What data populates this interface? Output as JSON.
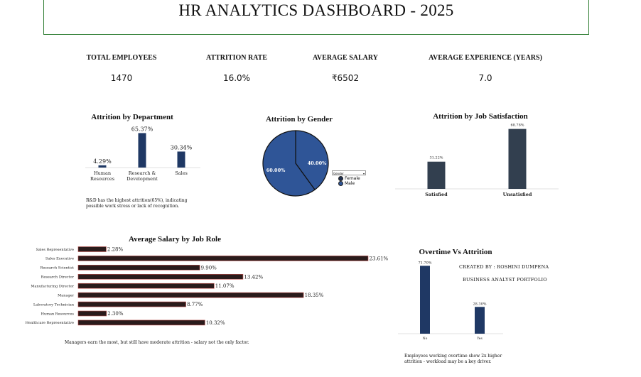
{
  "header": {
    "title": "HR ANALYTICS DASHBOARD - 2025"
  },
  "kpis": [
    {
      "label": "TOTAL EMPLOYEES",
      "value": "1470"
    },
    {
      "label": "ATTRITION RATE",
      "value": "16.0%"
    },
    {
      "label": "AVERAGE SALARY",
      "value": "₹6502"
    },
    {
      "label": "AVERAGE EXPERIENCE (YEARS)",
      "value": "7.0"
    }
  ],
  "notes": {
    "department": "R&D has the highest attrition(65%), indicating possible work stress or lack of recognition.",
    "salary": "Managers earn the most, but still have moderate attrition - salary not the only factor.",
    "overtime": "Employees working overtime show 2x higher attrition - workload may be a key driver."
  },
  "credits": {
    "line1": "CREATED BY : ROSHINI DUMPENA",
    "line2": "BUSINESS ANALYST PORTFOLIO"
  },
  "gender_filter": {
    "selected": "Gender",
    "chevron": "▾"
  },
  "colors": {
    "navy": "#1f3864",
    "pie_male": "#2f5597",
    "pie_female": "#2f5597",
    "job_bar": "#323f4f",
    "salary_bar": "#2a1b1b",
    "salary_outline": "#c0504d",
    "header_border": "#2e7d32"
  },
  "chart_data": [
    {
      "id": "department",
      "type": "bar",
      "title": "Attrition by Department",
      "categories": [
        [
          "Human",
          "Resources"
        ],
        [
          "Research &",
          "Development"
        ],
        [
          "Sales"
        ]
      ],
      "values": [
        4.29,
        65.37,
        30.34
      ],
      "labels": [
        "4.29%",
        "65.37%",
        "30.34%"
      ],
      "ylim": [
        0,
        70
      ]
    },
    {
      "id": "gender",
      "type": "pie",
      "title": "Attrition by Gender",
      "categories": [
        "Female",
        "Male"
      ],
      "values": [
        40.0,
        60.0
      ],
      "labels": [
        "40.00%",
        "60.00%"
      ],
      "legend": "right"
    },
    {
      "id": "job_satisfaction",
      "type": "bar",
      "title": "Attrition by Job Satisfaction",
      "categories": [
        "Satisfied",
        "Unsatisfied"
      ],
      "values": [
        31.22,
        68.78
      ],
      "labels": [
        "31.22%",
        "68.78%"
      ],
      "ylim": [
        0,
        75
      ]
    },
    {
      "id": "salary_by_role",
      "type": "bar",
      "orientation": "horizontal",
      "title": "Average Salary by Job Role",
      "categories": [
        "Sales Representative",
        "Sales Executive",
        "Research Scientist",
        "Research Director",
        "Manufacturing Director",
        "Manager",
        "Laboratory Technician",
        "Human Resources",
        "Healthcare Representative"
      ],
      "values": [
        2.28,
        23.61,
        9.9,
        13.42,
        11.07,
        18.35,
        8.77,
        2.3,
        10.32
      ],
      "labels": [
        "2.28%",
        "23.61%",
        "9.90%",
        "13.42%",
        "11.07%",
        "18.35%",
        "8.77%",
        "2.30%",
        "10.32%"
      ],
      "xlim": [
        0,
        23.61
      ]
    },
    {
      "id": "overtime",
      "type": "bar",
      "title": "Overtime Vs Attrition",
      "categories": [
        "No",
        "Yes"
      ],
      "values": [
        71.7,
        28.3
      ],
      "labels": [
        "71.70%",
        "28.30%"
      ],
      "ylim": [
        0,
        75
      ]
    }
  ]
}
